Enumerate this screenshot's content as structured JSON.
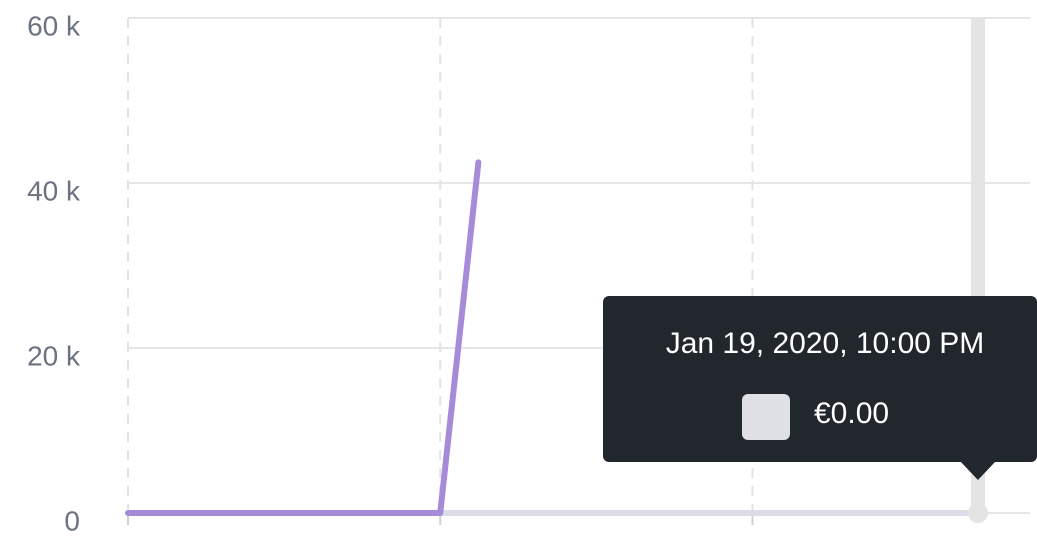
{
  "chart_data": {
    "type": "line",
    "ylim": [
      0,
      60000
    ],
    "yticks": [
      {
        "value": 0,
        "label": "0"
      },
      {
        "value": 20000,
        "label": "20 k"
      },
      {
        "value": 40000,
        "label": "40 k"
      },
      {
        "value": 60000,
        "label": "60 k"
      }
    ],
    "xlim": [
      0,
      26
    ],
    "xticks": [
      0,
      9,
      18
    ],
    "grid": true,
    "series": [
      {
        "color": "#a58bd8",
        "x": [
          0,
          9,
          10.1
        ],
        "values": [
          0,
          0,
          42500
        ]
      },
      {
        "color": "#dcdce6",
        "x": [
          9,
          24.5
        ],
        "values": [
          0,
          0
        ]
      }
    ],
    "tooltip": {
      "title": "Jan 19, 2020, 10:00 PM",
      "value_label": "€0.00",
      "swatch": "#dfe1e6"
    }
  }
}
